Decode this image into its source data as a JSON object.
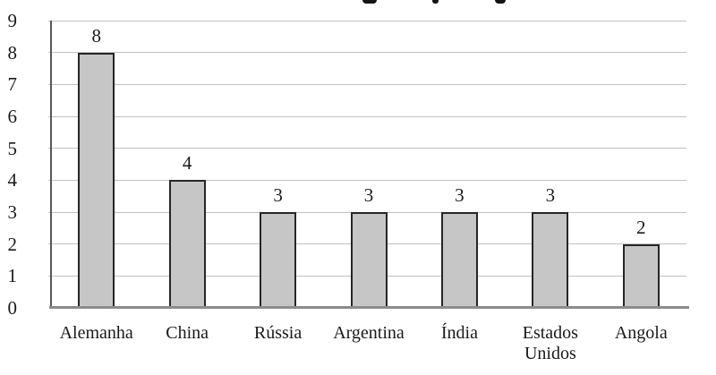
{
  "chart_data": {
    "type": "bar",
    "title": "",
    "title_cropped_at_top": true,
    "categories": [
      "Alemanha",
      "China",
      "Rússia",
      "Argentina",
      "Índia",
      "Estados Unidos",
      "Angola"
    ],
    "values": [
      8,
      4,
      3,
      3,
      3,
      3,
      2
    ],
    "data_labels": [
      "8",
      "4",
      "3",
      "3",
      "3",
      "3",
      "2"
    ],
    "xlabel": "",
    "ylabel": "",
    "ylim": [
      0,
      9
    ],
    "ytick_step": 1,
    "grid": true,
    "legend": "none",
    "colors": {
      "bar_fill": "#c6c6c6",
      "bar_border": "#262626",
      "gridline": "#c2c2c2",
      "axis_line": "#595959",
      "baseline": "#8c8c8c",
      "text": "#1a1a1a",
      "background": "#ffffff"
    }
  }
}
